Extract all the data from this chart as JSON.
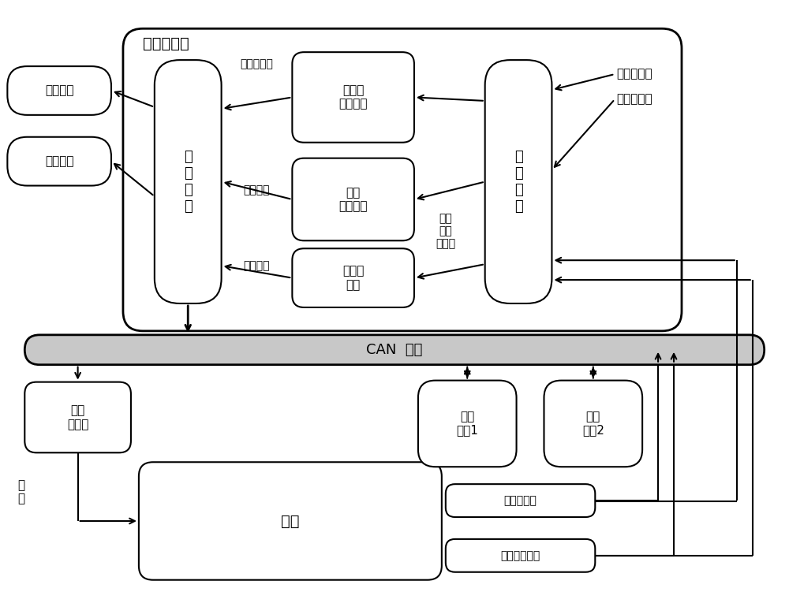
{
  "bg_color": "#ffffff",
  "vehicle_controller_label": "车辆控制器",
  "zonghe_label": "综\n合\n模\n块",
  "youxian_label": "优先级\n调度模块",
  "zhouqi_label": "周期\n调度模块",
  "kongzhiqi_label": "控制器\n模块",
  "bijiao_label": "比\n较\n模\n块",
  "huandang_label": "换档电机",
  "xuandang_label": "选档电机",
  "youxian_minglin": "优先级命令",
  "zhouqi_minglin": "周期命令",
  "kongzhi_minglin": "控制命令",
  "wucha_label": "误差\n误差\n变化量",
  "siji_line1": "驾驶员指令",
  "siji_line2": "直连传感器",
  "CAN_label": "CAN  网络",
  "dianji_label": "电机\n控制器",
  "zhuanju_label": "转\n矩",
  "cheliang_label": "车辆",
  "node1_label": "其它\n节点1",
  "node2_label": "其它\n节点2",
  "chesu_label": "车速传感器",
  "jiaosdu_label": "角速度传感器"
}
